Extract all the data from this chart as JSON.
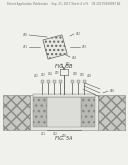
{
  "background_color": "#f0f0ec",
  "header_text": "Patent Application Publication    Sep. 21, 2017 Sheet 4 of 9    US 2017/0268887 A1",
  "fig5a_label": "FIG. 5A",
  "fig5b_label": "FIG. 5B",
  "page_bg": "#f0f0ec",
  "gray_hatch": "#c8c8c4",
  "gray_light": "#e4e4e0",
  "gray_mid": "#b8b8b4",
  "line_color": "#555555",
  "text_color": "#444444"
}
